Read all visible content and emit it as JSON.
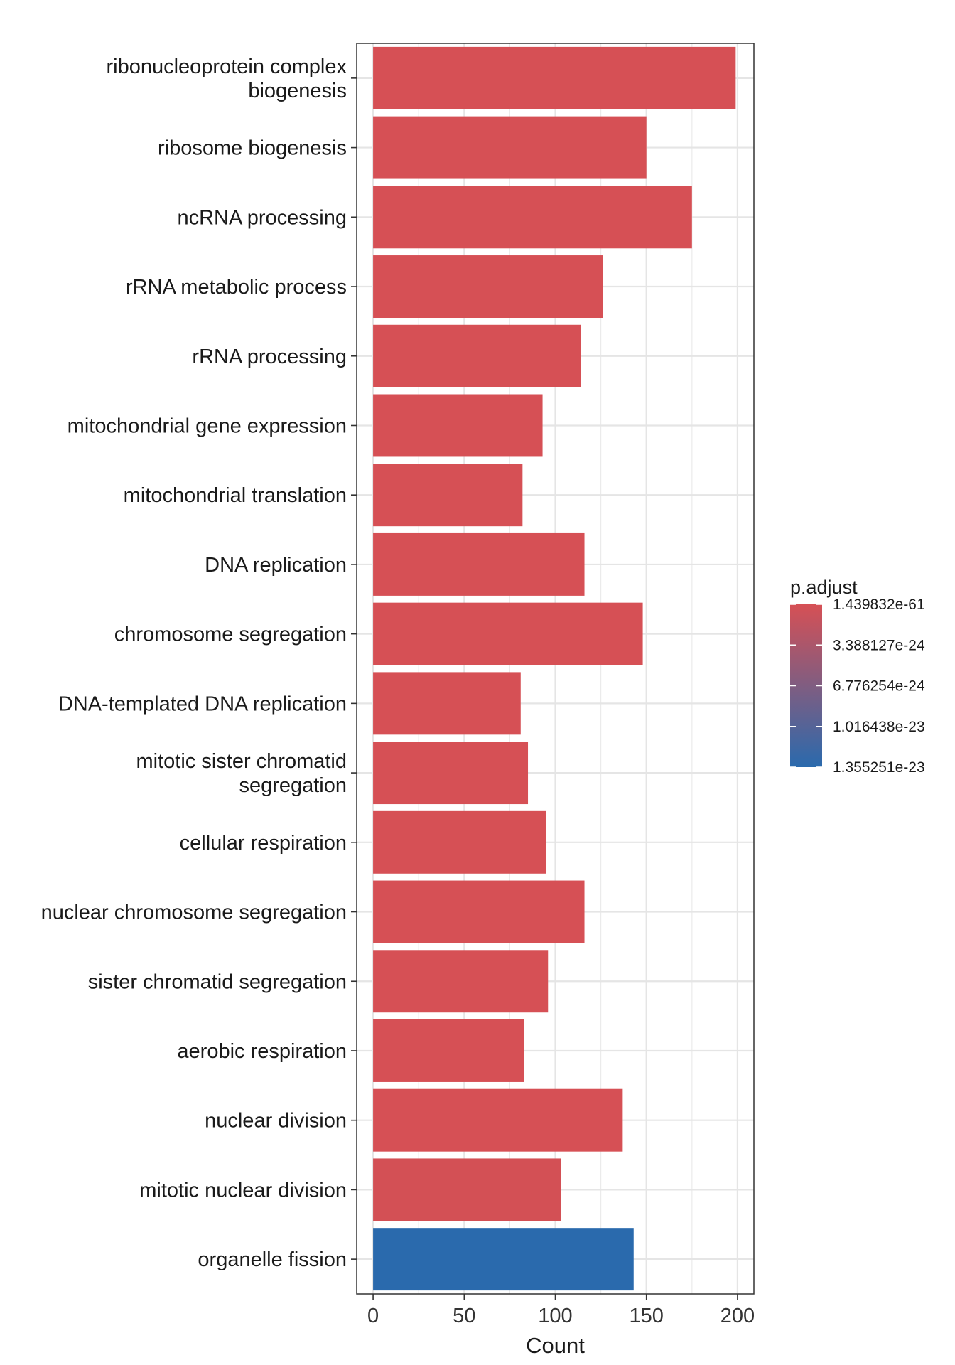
{
  "chart_data": {
    "type": "bar",
    "orientation": "horizontal",
    "categories": [
      "ribonucleoprotein complex\nbiogenesis",
      "ribosome biogenesis",
      "ncRNA processing",
      "rRNA metabolic process",
      "rRNA processing",
      "mitochondrial gene expression",
      "mitochondrial translation",
      "DNA replication",
      "chromosome segregation",
      "DNA-templated DNA replication",
      "mitotic sister chromatid\nsegregation",
      "cellular respiration",
      "nuclear chromosome segregation",
      "sister chromatid segregation",
      "aerobic respiration",
      "nuclear division",
      "mitotic nuclear division",
      "organelle fission"
    ],
    "values": [
      199,
      150,
      175,
      126,
      114,
      93,
      82,
      116,
      148,
      81,
      85,
      95,
      116,
      96,
      83,
      137,
      103,
      143
    ],
    "bar_colors": [
      "#d65055",
      "#d65055",
      "#d65055",
      "#d65055",
      "#d65055",
      "#d65055",
      "#d65055",
      "#d65055",
      "#d65055",
      "#d65055",
      "#d65055",
      "#d65055",
      "#d65055",
      "#d65055",
      "#d65055",
      "#d65055",
      "#d35055",
      "#2a6aad"
    ],
    "xlabel": "Count",
    "xlim": [
      -9,
      209
    ],
    "xticks": [
      0,
      50,
      100,
      150,
      200
    ],
    "xtick_labels": [
      "0",
      "50",
      "100",
      "150",
      "200"
    ],
    "grid": true,
    "legend": {
      "title": "p.adjust",
      "placement": "right",
      "labels": [
        "1.439832e-61",
        "3.388127e-24",
        "6.776254e-24",
        "1.016438e-23",
        "1.355251e-23"
      ],
      "gradient_colors": [
        "#d65055",
        "#2a6aad"
      ]
    }
  }
}
